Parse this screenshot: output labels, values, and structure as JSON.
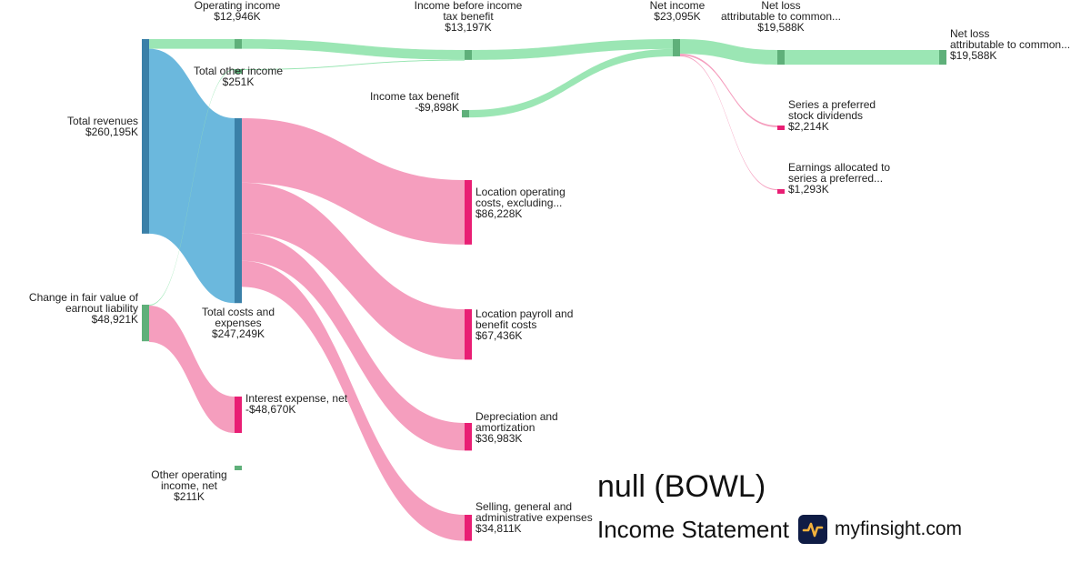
{
  "brand": {
    "company": "null (BOWL)",
    "statement": "Income Statement",
    "site": "myfinsight.com",
    "logo_icon": "pulse-line-icon"
  },
  "colors": {
    "revenue": "#6bb8dd",
    "revenue_bar": "#3a80a8",
    "profit": "#9be6b4",
    "profit_bar": "#5fb07a",
    "cost": "#f59ebe",
    "cost_bar": "#e91e74"
  },
  "chart_data": {
    "type": "sankey",
    "nodes": [
      {
        "id": "rev",
        "lines": [
          "Total revenues",
          "$260,195K"
        ],
        "kind": "revenue"
      },
      {
        "id": "cfv",
        "lines": [
          "Change in fair value of",
          "earnout liability",
          "$48,921K"
        ],
        "kind": "profit"
      },
      {
        "id": "opinc",
        "lines": [
          "Operating income",
          "$12,946K"
        ],
        "kind": "profit"
      },
      {
        "id": "toi",
        "lines": [
          "Total other income",
          "$251K"
        ],
        "kind": "profit"
      },
      {
        "id": "tce",
        "lines": [
          "Total costs and",
          "expenses",
          "$247,249K"
        ],
        "kind": "revenue"
      },
      {
        "id": "int",
        "lines": [
          "Interest expense, net",
          "-$48,670K"
        ],
        "kind": "cost"
      },
      {
        "id": "ooi",
        "lines": [
          "Other operating",
          "income, net",
          "$211K"
        ],
        "kind": "profit"
      },
      {
        "id": "ibt",
        "lines": [
          "Income before income",
          "tax benefit",
          "$13,197K"
        ],
        "kind": "profit"
      },
      {
        "id": "itb",
        "lines": [
          "Income tax benefit",
          "-$9,898K"
        ],
        "kind": "profit"
      },
      {
        "id": "loc",
        "lines": [
          "Location operating",
          "costs, excluding...",
          "$86,228K"
        ],
        "kind": "cost"
      },
      {
        "id": "lpb",
        "lines": [
          "Location payroll and",
          "benefit costs",
          "$67,436K"
        ],
        "kind": "cost"
      },
      {
        "id": "dep",
        "lines": [
          "Depreciation and",
          "amortization",
          "$36,983K"
        ],
        "kind": "cost"
      },
      {
        "id": "sga",
        "lines": [
          "Selling, general and",
          "administrative expenses",
          "$34,811K"
        ],
        "kind": "cost"
      },
      {
        "id": "ni",
        "lines": [
          "Net income",
          "$23,095K"
        ],
        "kind": "profit"
      },
      {
        "id": "nla1",
        "lines": [
          "Net loss",
          "attributable to common...",
          "$19,588K"
        ],
        "kind": "profit"
      },
      {
        "id": "spd",
        "lines": [
          "Series a preferred",
          "stock dividends",
          "$2,214K"
        ],
        "kind": "cost"
      },
      {
        "id": "eas",
        "lines": [
          "Earnings allocated to",
          "series a preferred...",
          "$1,293K"
        ],
        "kind": "cost"
      },
      {
        "id": "nla2",
        "lines": [
          "Net loss",
          "attributable to common...",
          "$19,588K"
        ],
        "kind": "profit"
      }
    ],
    "links": [
      {
        "source": "rev",
        "target": "opinc",
        "value": 12946
      },
      {
        "source": "rev",
        "target": "tce",
        "value": 247249
      },
      {
        "source": "cfv",
        "target": "toi",
        "value": 251
      },
      {
        "source": "cfv",
        "target": "int",
        "value": 48670
      },
      {
        "source": "opinc",
        "target": "ibt",
        "value": 12946
      },
      {
        "source": "toi",
        "target": "ibt",
        "value": 251
      },
      {
        "source": "tce",
        "target": "loc",
        "value": 86228
      },
      {
        "source": "tce",
        "target": "lpb",
        "value": 67436
      },
      {
        "source": "tce",
        "target": "dep",
        "value": 36983
      },
      {
        "source": "tce",
        "target": "sga",
        "value": 34811
      },
      {
        "source": "ibt",
        "target": "ni",
        "value": 13197
      },
      {
        "source": "itb",
        "target": "ni",
        "value": 9898
      },
      {
        "source": "ni",
        "target": "nla1",
        "value": 19588
      },
      {
        "source": "ni",
        "target": "spd",
        "value": 2214
      },
      {
        "source": "ni",
        "target": "eas",
        "value": 1293
      },
      {
        "source": "nla1",
        "target": "nla2",
        "value": 19588
      }
    ]
  }
}
